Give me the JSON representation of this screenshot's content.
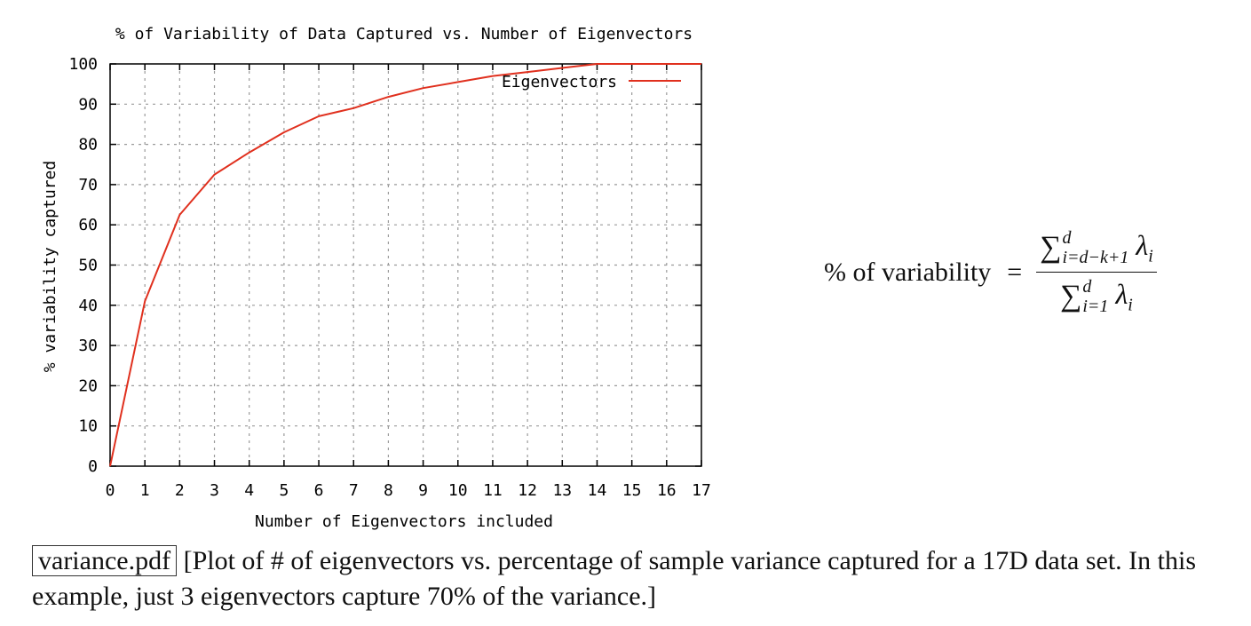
{
  "chart_data": {
    "type": "line",
    "title": "% of Variability of Data Captured vs. Number of Eigenvectors",
    "xlabel": "Number of Eigenvectors included",
    "ylabel": "% variability captured",
    "xlim": [
      0,
      17
    ],
    "ylim": [
      0,
      100
    ],
    "xticks": [
      "0",
      "1",
      "2",
      "3",
      "4",
      "5",
      "6",
      "7",
      "8",
      "9",
      "10",
      "11",
      "12",
      "13",
      "14",
      "15",
      "16",
      "17"
    ],
    "yticks": [
      "0",
      "10",
      "20",
      "30",
      "40",
      "50",
      "60",
      "70",
      "80",
      "90",
      "100"
    ],
    "grid": true,
    "legend_position": "top-right",
    "series": [
      {
        "name": "Eigenvectors",
        "color": "#e0301e",
        "x": [
          0,
          1,
          2,
          3,
          4,
          5,
          6,
          7,
          8,
          9,
          10,
          11,
          12,
          13,
          14,
          15,
          16,
          17
        ],
        "y": [
          0,
          41,
          62.5,
          72.5,
          78,
          83,
          87,
          89,
          91.8,
          94,
          95.5,
          97,
          98,
          99,
          100,
          100,
          100,
          100
        ]
      }
    ]
  },
  "formula": {
    "lhs": "% of variability",
    "eq": "=",
    "sigma": "∑",
    "num_upper": "d",
    "num_lower": "i=d−k+1",
    "den_upper": "d",
    "den_lower": "i=1",
    "lambda": "λ",
    "sub": "i"
  },
  "caption": {
    "file": "variance.pdf",
    "text": "[Plot of # of eigenvectors vs. percentage of sample variance captured for a 17D data set. In this example, just 3 eigenvectors capture 70% of the variance.]"
  }
}
